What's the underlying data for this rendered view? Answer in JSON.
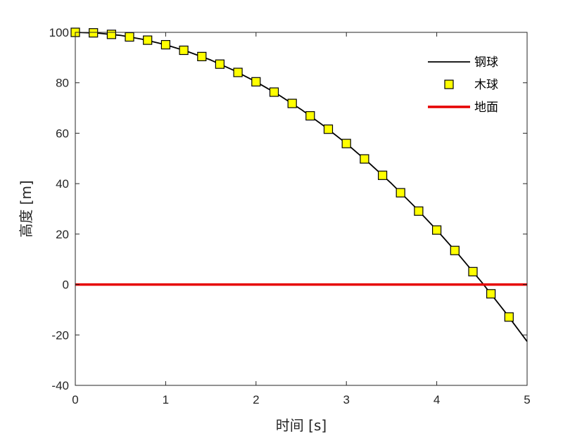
{
  "chart_data": {
    "type": "line",
    "xlabel": "时间 [s]",
    "ylabel": "高度 [m]",
    "xlim": [
      0,
      5
    ],
    "ylim": [
      -40,
      100
    ],
    "xticks": [
      0,
      1,
      2,
      3,
      4,
      5
    ],
    "yticks": [
      -40,
      -20,
      0,
      20,
      40,
      60,
      80,
      100
    ],
    "grid": false,
    "legend_position": "top-right",
    "series": [
      {
        "name": "钢球",
        "style": "line",
        "color": "#000000",
        "x": [
          0,
          0.25,
          0.5,
          0.75,
          1,
          1.25,
          1.5,
          1.75,
          2,
          2.25,
          2.5,
          2.75,
          3,
          3.25,
          3.5,
          3.75,
          4,
          4.25,
          4.5,
          4.75,
          5
        ],
        "y": [
          100,
          99.7,
          98.8,
          97.2,
          95.1,
          92.3,
          89.0,
          85.0,
          80.4,
          75.2,
          69.4,
          62.9,
          55.9,
          48.2,
          40.0,
          31.1,
          21.6,
          11.5,
          0.8,
          -10.6,
          -22.6
        ]
      },
      {
        "name": "木球",
        "style": "markers",
        "marker": "square",
        "color": "#ffff00",
        "x": [
          0,
          0.2,
          0.4,
          0.6,
          0.8,
          1.0,
          1.2,
          1.4,
          1.6,
          1.8,
          2.0,
          2.2,
          2.4,
          2.6,
          2.8,
          3.0,
          3.2,
          3.4,
          3.6,
          3.8,
          4.0,
          4.2,
          4.4,
          4.6,
          4.8
        ],
        "y": [
          100,
          99.8,
          99.2,
          98.2,
          96.9,
          95.1,
          92.9,
          90.4,
          87.4,
          84.1,
          80.4,
          76.3,
          71.8,
          66.9,
          61.6,
          55.9,
          49.8,
          43.3,
          36.4,
          29.1,
          21.6,
          13.5,
          5.1,
          -3.7,
          -12.9
        ]
      },
      {
        "name": "地面",
        "style": "line",
        "color": "#e60000",
        "x": [
          0,
          5
        ],
        "y": [
          0,
          0
        ]
      }
    ]
  }
}
